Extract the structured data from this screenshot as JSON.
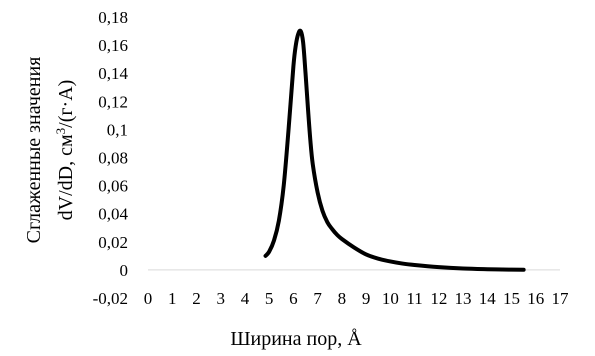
{
  "chart_data": {
    "type": "line",
    "xlabel": "Ширина пор, Å",
    "ylabel_line1": "Сглаженные значения",
    "ylabel_line2_prefix": "dV/dD, см",
    "ylabel_line2_sup": "3",
    "ylabel_line2_suffix": "/(г·A)",
    "xlim": [
      0,
      17
    ],
    "ylim": [
      -0.02,
      0.18
    ],
    "x_ticks": [
      0,
      1,
      2,
      3,
      4,
      5,
      6,
      7,
      8,
      9,
      10,
      11,
      12,
      13,
      14,
      15,
      16,
      17
    ],
    "x_tick_labels": [
      "0",
      "1",
      "2",
      "3",
      "4",
      "5",
      "6",
      "7",
      "8",
      "9",
      "10",
      "11",
      "12",
      "13",
      "14",
      "15",
      "16",
      "17"
    ],
    "y_ticks": [
      -0.02,
      0,
      0.02,
      0.04,
      0.06,
      0.08,
      0.1,
      0.12,
      0.14,
      0.16,
      0.18
    ],
    "y_tick_labels": [
      "-0,02",
      "0",
      "0,02",
      "0,04",
      "0,06",
      "0,08",
      "0,1",
      "0,12",
      "0,14",
      "0,16",
      "0,18"
    ],
    "grid": false,
    "line_color": "#000000",
    "series": [
      {
        "x": [
          4.85,
          5.0,
          5.2,
          5.4,
          5.6,
          5.8,
          6.0,
          6.1,
          6.2,
          6.3,
          6.4,
          6.5,
          6.6,
          6.7,
          6.8,
          7.0,
          7.2,
          7.4,
          7.6,
          7.8,
          8.0,
          8.5,
          9.0,
          9.5,
          10.0,
          10.5,
          11.0,
          12.0,
          13.0,
          14.0,
          15.0,
          15.5
        ],
        "y": [
          0.01,
          0.013,
          0.021,
          0.035,
          0.06,
          0.1,
          0.145,
          0.16,
          0.168,
          0.17,
          0.162,
          0.14,
          0.115,
          0.092,
          0.075,
          0.055,
          0.042,
          0.034,
          0.029,
          0.025,
          0.022,
          0.016,
          0.011,
          0.008,
          0.006,
          0.0045,
          0.0035,
          0.002,
          0.001,
          0.0005,
          0.0002,
          0.0001
        ]
      }
    ]
  }
}
